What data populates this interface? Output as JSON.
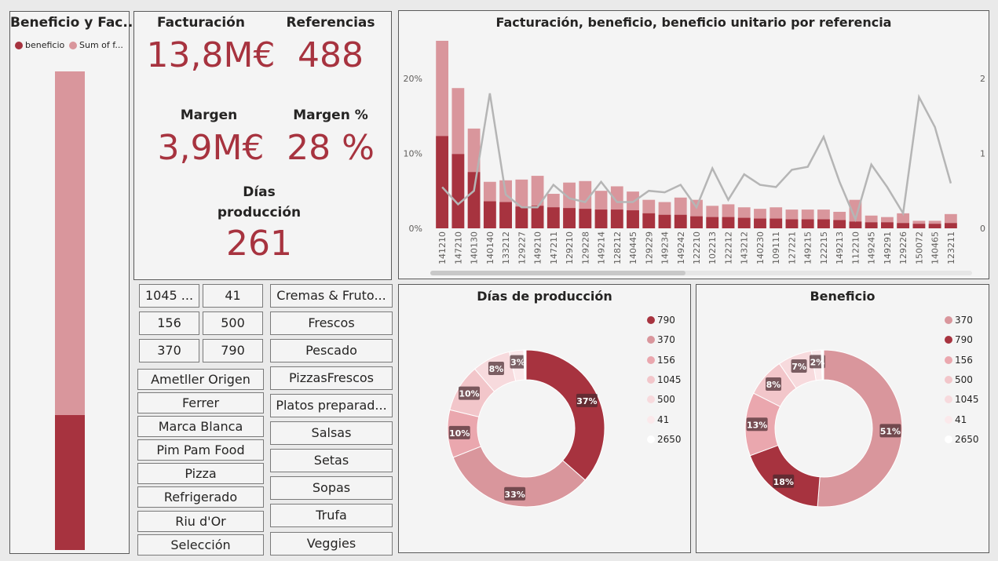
{
  "colors": {
    "dark_red": "#a7333f",
    "mid_red": "#d9969c",
    "pink": "#eaa7ae",
    "light_pink": "#f2c6ca",
    "very_light": "#f7dadd",
    "pale": "#fbe9eb",
    "line_gray": "#b5b5b5"
  },
  "left_chart": {
    "title": "Beneficio y Fac...",
    "legend": [
      {
        "label": "beneficio",
        "color": "#a7333f"
      },
      {
        "label": "Sum of f...",
        "color": "#d9969c"
      }
    ],
    "chart_data": {
      "type": "bar",
      "stacked": true,
      "series": [
        {
          "name": "beneficio",
          "value": 3.9
        },
        {
          "name": "Sum of f...",
          "value": 13.8
        }
      ]
    }
  },
  "kpis": {
    "facturacion": {
      "label": "Facturación",
      "value": "13,8M€"
    },
    "referencias": {
      "label": "Referencias",
      "value": "488"
    },
    "margen": {
      "label": "Margen",
      "value": "3,9M€"
    },
    "margen_pct": {
      "label": "Margen %",
      "value": "28 %"
    },
    "dias": {
      "label_line1": "Días",
      "label_line2": "producción",
      "value": "261"
    }
  },
  "slicer_numbers": [
    "1045 ...",
    "41",
    "156",
    "500",
    "370",
    "790"
  ],
  "slicer_brands": [
    "Ametller Origen",
    "Ferrer",
    "Marca Blanca",
    "Pim Pam Food",
    "Pizza",
    "Refrigerado",
    "Riu d'Or",
    "Selección"
  ],
  "slicer_categories": [
    "Cremas & Fruto...",
    "Frescos",
    "Pescado",
    "PizzasFrescos",
    "Platos preparad...",
    "Salsas",
    "Setas",
    "Sopas",
    "Trufa",
    "Veggies"
  ],
  "combo_chart": {
    "title": "Facturación, beneficio, beneficio unitario por referencia",
    "chart_data": {
      "type": "bar",
      "categories": [
        "141210",
        "147210",
        "140130",
        "140140",
        "133212",
        "129227",
        "149210",
        "147211",
        "129210",
        "129228",
        "149214",
        "128212",
        "140445",
        "129229",
        "149234",
        "149242",
        "122210",
        "102213",
        "122212",
        "143212",
        "140230",
        "109111",
        "127221",
        "149215",
        "122215",
        "149213",
        "112210",
        "149245",
        "149291",
        "129226",
        "150072",
        "140465",
        "123211"
      ],
      "y_left_ticks": [
        "0%",
        "10%",
        "20%"
      ],
      "y_left_range": [
        0,
        25
      ],
      "y_right_ticks": [
        "0",
        "1",
        "2"
      ],
      "y_right_range": [
        0,
        2.5
      ],
      "series": [
        {
          "name": "facturación",
          "values": [
            25,
            18.7,
            13.3,
            6.2,
            6.4,
            6.5,
            7.0,
            4.6,
            6.1,
            6.3,
            5.0,
            5.6,
            4.9,
            3.8,
            3.5,
            4.1,
            3.8,
            3.0,
            3.2,
            2.8,
            2.6,
            2.8,
            2.5,
            2.5,
            2.5,
            2.2,
            3.8,
            1.7,
            1.5,
            2.0,
            1.0,
            1.0,
            1.9
          ]
        },
        {
          "name": "beneficio",
          "values": [
            12.3,
            9.9,
            7.5,
            3.6,
            3.5,
            2.9,
            3.0,
            2.8,
            2.7,
            2.6,
            2.5,
            2.5,
            2.4,
            2.0,
            1.8,
            1.8,
            1.6,
            1.5,
            1.5,
            1.4,
            1.3,
            1.3,
            1.2,
            1.2,
            1.2,
            1.1,
            0.9,
            0.8,
            0.8,
            0.7,
            0.6,
            0.6,
            0.7
          ]
        },
        {
          "name": "beneficio unitario",
          "values": [
            0.55,
            0.32,
            0.5,
            1.8,
            0.45,
            0.28,
            0.28,
            0.58,
            0.4,
            0.35,
            0.62,
            0.35,
            0.35,
            0.5,
            0.48,
            0.58,
            0.28,
            0.8,
            0.38,
            0.72,
            0.58,
            0.55,
            0.78,
            0.82,
            1.22,
            0.62,
            0.12,
            0.85,
            0.55,
            0.2,
            1.75,
            1.35,
            0.6
          ]
        }
      ]
    }
  },
  "donut_dias": {
    "title": "Días de producción",
    "legend": [
      {
        "label": "790",
        "color": "#a7333f"
      },
      {
        "label": "370",
        "color": "#d9969c"
      },
      {
        "label": "156",
        "color": "#eaa7ae"
      },
      {
        "label": "1045",
        "color": "#f2c6ca"
      },
      {
        "label": "500",
        "color": "#f7dadd"
      },
      {
        "label": "41",
        "color": "#fbe9eb"
      },
      {
        "label": "2650",
        "color": "#ffffff"
      }
    ],
    "chart_data": {
      "type": "pie",
      "donut": true,
      "categories": [
        "790",
        "370",
        "156",
        "1045",
        "500",
        "41",
        "2650"
      ],
      "values": [
        37,
        33,
        10,
        10,
        8,
        3,
        0.5
      ],
      "labels": [
        "37%",
        "33%",
        "10%",
        "10%",
        "8%",
        "3%",
        ""
      ]
    }
  },
  "donut_beneficio": {
    "title": "Beneficio",
    "legend": [
      {
        "label": "370",
        "color": "#d9969c"
      },
      {
        "label": "790",
        "color": "#a7333f"
      },
      {
        "label": "156",
        "color": "#eaa7ae"
      },
      {
        "label": "500",
        "color": "#f2c6ca"
      },
      {
        "label": "1045",
        "color": "#f7dadd"
      },
      {
        "label": "41",
        "color": "#fbe9eb"
      },
      {
        "label": "2650",
        "color": "#ffffff"
      }
    ],
    "chart_data": {
      "type": "pie",
      "donut": true,
      "categories": [
        "370",
        "790",
        "156",
        "500",
        "1045",
        "41",
        "2650"
      ],
      "values": [
        51,
        18,
        13,
        8,
        7,
        2,
        0.5
      ],
      "labels": [
        "51%",
        "18%",
        "13%",
        "8%",
        "7%",
        "2%",
        ""
      ]
    }
  }
}
